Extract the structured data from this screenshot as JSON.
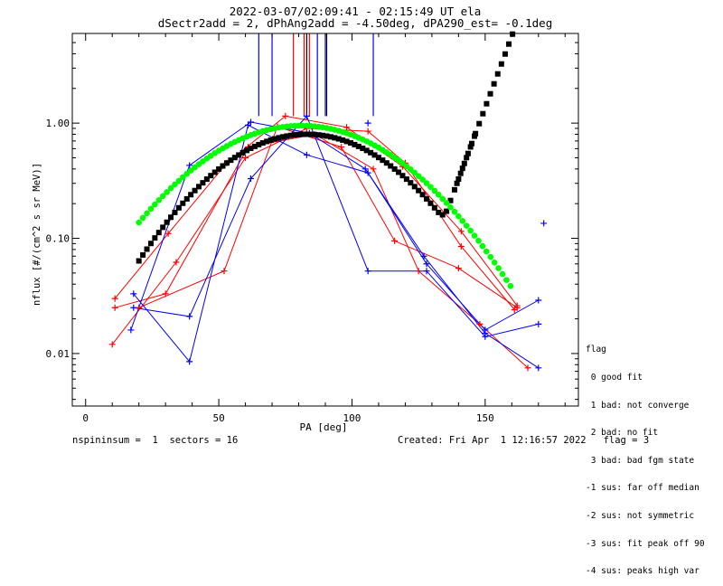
{
  "chart_data": {
    "type": "scatter",
    "title": "2022-03-07/02:09:41 - 02:15:49 UT ela",
    "subtitle": "dSectr2add = 2, dPhAng2add = -4.50deg, dPA290_est=  -0.1deg",
    "xlabel": "PA [deg]",
    "ylabel": "nflux [#/(cm^2 s sr MeV)]",
    "xlim": [
      -5,
      185
    ],
    "ylim": [
      0.0035,
      6.0
    ],
    "yscale": "log",
    "xticks": [
      0,
      50,
      100,
      150
    ],
    "yticks": [
      0.01,
      0.1,
      1.0
    ],
    "ytick_labels": [
      "0.01",
      "0.10",
      "1.00"
    ],
    "grid": false,
    "colors": {
      "red": "#ff0000",
      "blue": "#0000ff",
      "black": "#000000",
      "green": "#00ff00"
    },
    "red_series": [
      {
        "x": [
          11,
          31,
          53,
          75,
          98,
          119,
          141,
          162
        ],
        "y": [
          0.03,
          0.11,
          0.45,
          1.15,
          0.92,
          0.42,
          0.115,
          0.026
        ]
      },
      {
        "x": [
          11,
          30,
          61,
          86,
          108,
          125,
          148,
          166
        ],
        "y": [
          0.025,
          0.033,
          0.62,
          0.8,
          0.4,
          0.052,
          0.018,
          0.0075
        ]
      },
      {
        "x": [
          10,
          34,
          60,
          83,
          106,
          120,
          141,
          161
        ],
        "y": [
          0.012,
          0.062,
          0.5,
          0.9,
          0.85,
          0.45,
          0.085,
          0.024
        ]
      },
      {
        "x": [
          20,
          52,
          72,
          96,
          116,
          140,
          162
        ],
        "y": [
          0.025,
          0.052,
          0.93,
          0.62,
          0.095,
          0.055,
          0.025
        ]
      }
    ],
    "blue_series": [
      {
        "x": [
          17,
          39,
          62,
          84,
          105,
          127,
          150,
          170
        ],
        "y": [
          0.016,
          0.43,
          1.02,
          0.82,
          0.4,
          0.07,
          0.015,
          0.0075
        ]
      },
      {
        "x": [
          18,
          39,
          61,
          83,
          106,
          128,
          150,
          170
        ],
        "y": [
          0.033,
          0.0085,
          0.96,
          0.53,
          0.37,
          0.06,
          0.016,
          0.029
        ]
      },
      {
        "x": [
          18,
          39,
          62,
          83,
          106,
          128,
          150,
          170
        ],
        "y": [
          0.025,
          0.021,
          0.33,
          1.15,
          0.052,
          0.052,
          0.014,
          0.018
        ]
      }
    ],
    "blue_isolated": [
      {
        "x": 106,
        "y": 1.0
      },
      {
        "x": 172,
        "y": 0.135
      }
    ],
    "vertical_lines_top": [
      {
        "x": 65,
        "color": "#0000ff"
      },
      {
        "x": 70,
        "color": "#0000ff"
      },
      {
        "x": 78,
        "color": "#ff0000"
      },
      {
        "x": 82,
        "color": "#ff0000"
      },
      {
        "x": 83,
        "color": "#000000"
      },
      {
        "x": 84,
        "color": "#ff0000"
      },
      {
        "x": 87,
        "color": "#0000ff"
      },
      {
        "x": 90,
        "color": "#0000ff"
      },
      {
        "x": 90.5,
        "color": "#000000"
      },
      {
        "x": 108,
        "color": "#0000ff"
      }
    ],
    "black_fit": {
      "x_start": 20,
      "x_end": 147,
      "x_step": 1.5,
      "peak_x": 83,
      "peak_y": 0.8,
      "width": 28.0,
      "baseline": 0.16,
      "rise_x0": 135,
      "rise_scale": 7.0
    },
    "green_fit": {
      "x_start": 20,
      "x_end": 160,
      "x_step": 1.5,
      "peak_x": 81,
      "peak_y": 0.95,
      "width": 31.0
    }
  },
  "legend": {
    "title": "flag",
    "items": [
      " 0 good fit",
      " 1 bad: not converge",
      " 2 bad: no fit",
      " 3 bad: bad fgm state",
      "-1 sus: far off median",
      "-2 sus: not symmetric",
      "-3 sus: fit peak off 90",
      "-4 sus: peaks high var"
    ]
  },
  "footer": {
    "left": "nspininsum =  1  sectors = 16",
    "right": "Created: Fri Apr  1 12:16:57 2022   flag = 3"
  }
}
